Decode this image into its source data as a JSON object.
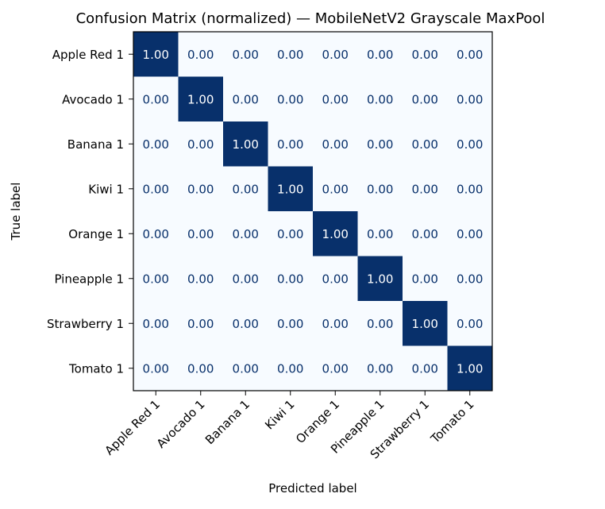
{
  "chart_data": {
    "type": "heatmap",
    "title": "Confusion Matrix (normalized) — MobileNetV2 Grayscale MaxPool",
    "xlabel": "Predicted label",
    "ylabel": "True label",
    "x_categories": [
      "Apple Red 1",
      "Avocado 1",
      "Banana 1",
      "Kiwi 1",
      "Orange 1",
      "Pineapple 1",
      "Strawberry 1",
      "Tomato 1"
    ],
    "y_categories": [
      "Apple Red 1",
      "Avocado 1",
      "Banana 1",
      "Kiwi 1",
      "Orange 1",
      "Pineapple 1",
      "Strawberry 1",
      "Tomato 1"
    ],
    "values": [
      [
        1,
        0,
        0,
        0,
        0,
        0,
        0,
        0
      ],
      [
        0,
        1,
        0,
        0,
        0,
        0,
        0,
        0
      ],
      [
        0,
        0,
        1,
        0,
        0,
        0,
        0,
        0
      ],
      [
        0,
        0,
        0,
        1,
        0,
        0,
        0,
        0
      ],
      [
        0,
        0,
        0,
        0,
        1,
        0,
        0,
        0
      ],
      [
        0,
        0,
        0,
        0,
        0,
        1,
        0,
        0
      ],
      [
        0,
        0,
        0,
        0,
        0,
        0,
        1,
        0
      ],
      [
        0,
        0,
        0,
        0,
        0,
        0,
        0,
        1
      ]
    ],
    "value_format_decimals": 2,
    "value_range": [
      0,
      1
    ],
    "colormap": "Blues",
    "colors": {
      "low": "#f7fbff",
      "high": "#08306b",
      "text_on_dark": "#ffffff",
      "text_on_light": "#08306b"
    },
    "colorbar": false,
    "grid": false
  }
}
